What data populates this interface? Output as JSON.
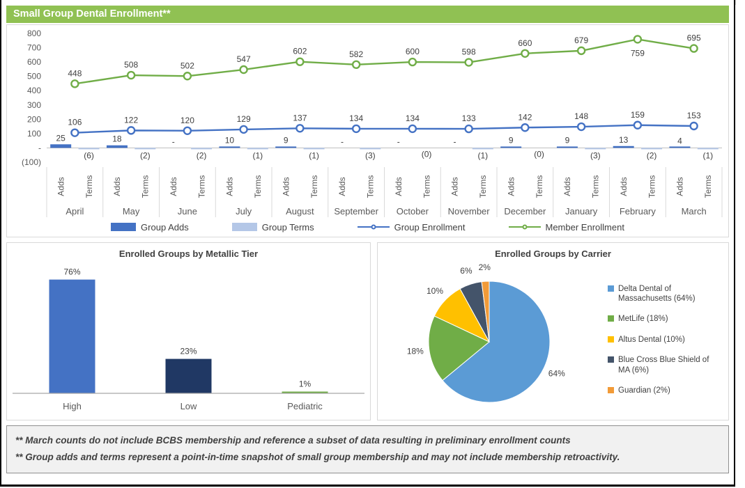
{
  "page": {
    "header": {
      "title": "Small Group Dental Enrollment**",
      "bg_color": "#90C153"
    },
    "footnotes": {
      "line1": "** March counts do not include BCBS membership and reference a subset of data resulting in preliminary enrollment counts",
      "line2": "** Group adds and terms represent a point-in-time snapshot of small group membership and may not include membership retroactivity."
    }
  },
  "chart_data": [
    {
      "id": "enrollment_combo",
      "type": "line",
      "title": "Small Group Dental Enrollment**",
      "categories": [
        "April",
        "May",
        "June",
        "July",
        "August",
        "September",
        "October",
        "November",
        "December",
        "January",
        "February",
        "March"
      ],
      "sub_categories": [
        "Adds",
        "Terms"
      ],
      "y_ticks": [
        {
          "v": 800,
          "label": "800"
        },
        {
          "v": 700,
          "label": "700"
        },
        {
          "v": 600,
          "label": "600"
        },
        {
          "v": 500,
          "label": "500"
        },
        {
          "v": 400,
          "label": "400"
        },
        {
          "v": 300,
          "label": "300"
        },
        {
          "v": 200,
          "label": "200"
        },
        {
          "v": 100,
          "label": "100"
        },
        {
          "v": 0,
          "label": "-"
        },
        {
          "v": -100,
          "label": "(100)"
        }
      ],
      "ylim": [
        -100,
        800
      ],
      "legend_position": "bottom",
      "series": [
        {
          "name": "Group Adds",
          "kind": "bar",
          "color": "#4472C4",
          "values": [
            25,
            18,
            0,
            10,
            9,
            0,
            0,
            0,
            9,
            9,
            13,
            4
          ],
          "labels": [
            "25",
            "18",
            "-",
            "10",
            "9",
            "-",
            "-",
            "-",
            "9",
            "9",
            "13",
            "4"
          ]
        },
        {
          "name": "Group Terms",
          "kind": "bar",
          "color": "#B4C7E7",
          "values": [
            -6,
            -2,
            -2,
            -1,
            -1,
            -3,
            0,
            -1,
            0,
            -3,
            -2,
            -1
          ],
          "labels": [
            "(6)",
            "(2)",
            "(2)",
            "(1)",
            "(1)",
            "(3)",
            "(0)",
            "(1)",
            "(0)",
            "(3)",
            "(2)",
            "(1)"
          ]
        },
        {
          "name": "Group Enrollment",
          "kind": "line",
          "color": "#4472C4",
          "values": [
            106,
            122,
            120,
            129,
            137,
            134,
            134,
            133,
            142,
            148,
            159,
            153
          ]
        },
        {
          "name": "Member Enrollment",
          "kind": "line",
          "color": "#70AD47",
          "values": [
            448,
            508,
            502,
            547,
            602,
            582,
            600,
            598,
            660,
            679,
            759,
            695
          ]
        }
      ]
    },
    {
      "id": "metallic_tier",
      "type": "bar",
      "title": "Enrolled Groups by Metallic Tier",
      "categories": [
        "High",
        "Low",
        "Pediatric"
      ],
      "values": [
        76,
        23,
        1
      ],
      "labels": [
        "76%",
        "23%",
        "1%"
      ],
      "colors": [
        "#4472C4",
        "#203864",
        "#70AD47"
      ],
      "ylim": [
        0,
        100
      ]
    },
    {
      "id": "carrier_pie",
      "type": "pie",
      "title": "Enrolled Groups by Carrier",
      "legend_position": "right",
      "slices": [
        {
          "name": "Delta Dental of Massachusetts",
          "pct": 64,
          "label": "64%",
          "color": "#5B9BD5",
          "legend_label": "Delta Dental of Massachusetts (64%)"
        },
        {
          "name": "MetLife",
          "pct": 18,
          "label": "18%",
          "color": "#70AD47",
          "legend_label": "MetLife (18%)"
        },
        {
          "name": "Altus Dental",
          "pct": 10,
          "label": "10%",
          "color": "#FFC000",
          "legend_label": "Altus Dental (10%)"
        },
        {
          "name": "Blue Cross Blue Shield of MA",
          "pct": 6,
          "label": "6%",
          "color": "#44546A",
          "legend_label": "Blue Cross Blue Shield of MA (6%)"
        },
        {
          "name": "Guardian",
          "pct": 2,
          "label": "2%",
          "color": "#F29B38",
          "legend_label": "Guardian (2%)"
        }
      ]
    }
  ]
}
